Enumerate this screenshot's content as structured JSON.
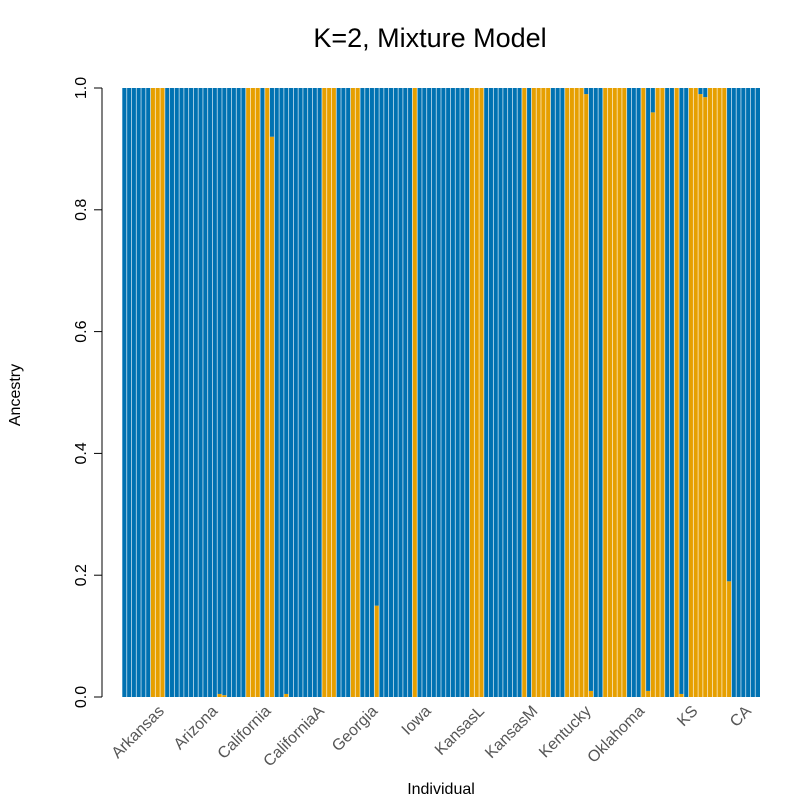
{
  "chart_data": {
    "type": "bar",
    "stacked": true,
    "title": "K=2, Mixture Model",
    "xlabel": "Individual",
    "ylabel": "Ancestry",
    "ylim": [
      0,
      1
    ],
    "yticks": [
      "0.0",
      "0.2",
      "0.4",
      "0.6",
      "0.8",
      "1.0"
    ],
    "colors": {
      "blue": "#0072B2",
      "orange": "#E69F00"
    },
    "group_labels": [
      "Arkansas",
      "Arizona",
      "California",
      "CaliforniaA",
      "Georgia",
      "Iowa",
      "KansasL",
      "KansasM",
      "Kentucky",
      "Oklahoma",
      "KS",
      "CA"
    ],
    "series": [
      {
        "color": "orange",
        "values": [
          0,
          0,
          0,
          0,
          0,
          0,
          1,
          1,
          1,
          0,
          0,
          0,
          0,
          0,
          0,
          0,
          0,
          0,
          0,
          0,
          0.005,
          0.003,
          0,
          0,
          0,
          0,
          1,
          1,
          1,
          0,
          1,
          0.92,
          0,
          0,
          0.005,
          0,
          0,
          0,
          0,
          0,
          0,
          0,
          1,
          1,
          1,
          0,
          0,
          0,
          1,
          1,
          0,
          0,
          0,
          0.15,
          0,
          0,
          0,
          0,
          0,
          0,
          0,
          1,
          0,
          0,
          0,
          0,
          0,
          0,
          0,
          0,
          0,
          0,
          0,
          1,
          1,
          1,
          0,
          0,
          0,
          0,
          0,
          0,
          0,
          0,
          1,
          0,
          1,
          1,
          1,
          1,
          0,
          0,
          0,
          1,
          1,
          1,
          1,
          0.99,
          0.01,
          0,
          0,
          1,
          1,
          1,
          1,
          1,
          0,
          0,
          0,
          1,
          0.01,
          0.96,
          1,
          1,
          0,
          0,
          1,
          0.005,
          0,
          1,
          1,
          0.99,
          0.985,
          1,
          1,
          1,
          1,
          0.19,
          0,
          0,
          0,
          0,
          0,
          0
        ]
      }
    ]
  }
}
